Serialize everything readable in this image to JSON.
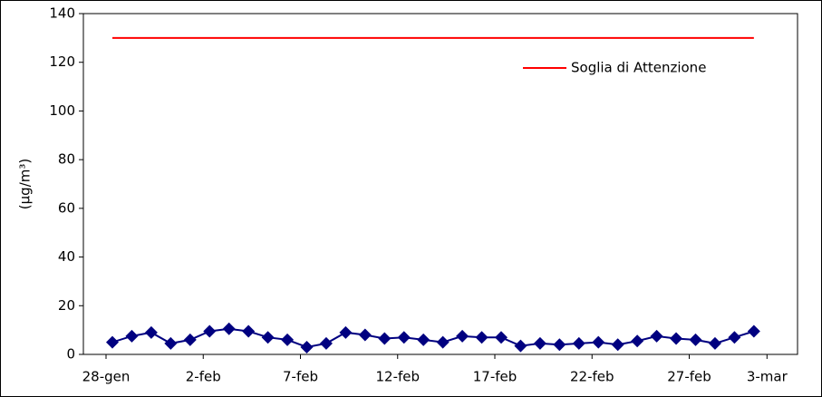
{
  "chart_data": {
    "type": "line",
    "y_label": "(µg/m³)",
    "categories": [
      "28-gen",
      null,
      null,
      null,
      null,
      "2-feb",
      null,
      null,
      null,
      null,
      "7-feb",
      null,
      null,
      null,
      null,
      "12-feb",
      null,
      null,
      null,
      null,
      "17-feb",
      null,
      null,
      null,
      null,
      "22-feb",
      null,
      null,
      null,
      null,
      "27-feb",
      null,
      null,
      null,
      "3-mar"
    ],
    "series": [
      {
        "color": "#000080",
        "marker": "diamond",
        "values": [
          5,
          7.5,
          9,
          4.5,
          6,
          9.5,
          10.5,
          9.5,
          7,
          6,
          3,
          4.5,
          9,
          8,
          6.5,
          7,
          6,
          5,
          7.5,
          7,
          7,
          3.5,
          4.5,
          4,
          4.5,
          5,
          4,
          5.5,
          7.5,
          6.5,
          6,
          4.5,
          7,
          9.5,
          null
        ]
      },
      {
        "name": "Soglia di Attenzione",
        "color": "#ff0000",
        "values": [
          130,
          130,
          130,
          130,
          130,
          130,
          130,
          130,
          130,
          130,
          130,
          130,
          130,
          130,
          130,
          130,
          130,
          130,
          130,
          130,
          130,
          130,
          130,
          130,
          130,
          130,
          130,
          130,
          130,
          130,
          130,
          130,
          130,
          130,
          null
        ]
      }
    ],
    "ylim": [
      0,
      140
    ],
    "yticks": [
      0,
      20,
      40,
      60,
      80,
      100,
      120,
      140
    ],
    "grid": false,
    "legend": "top-right"
  }
}
